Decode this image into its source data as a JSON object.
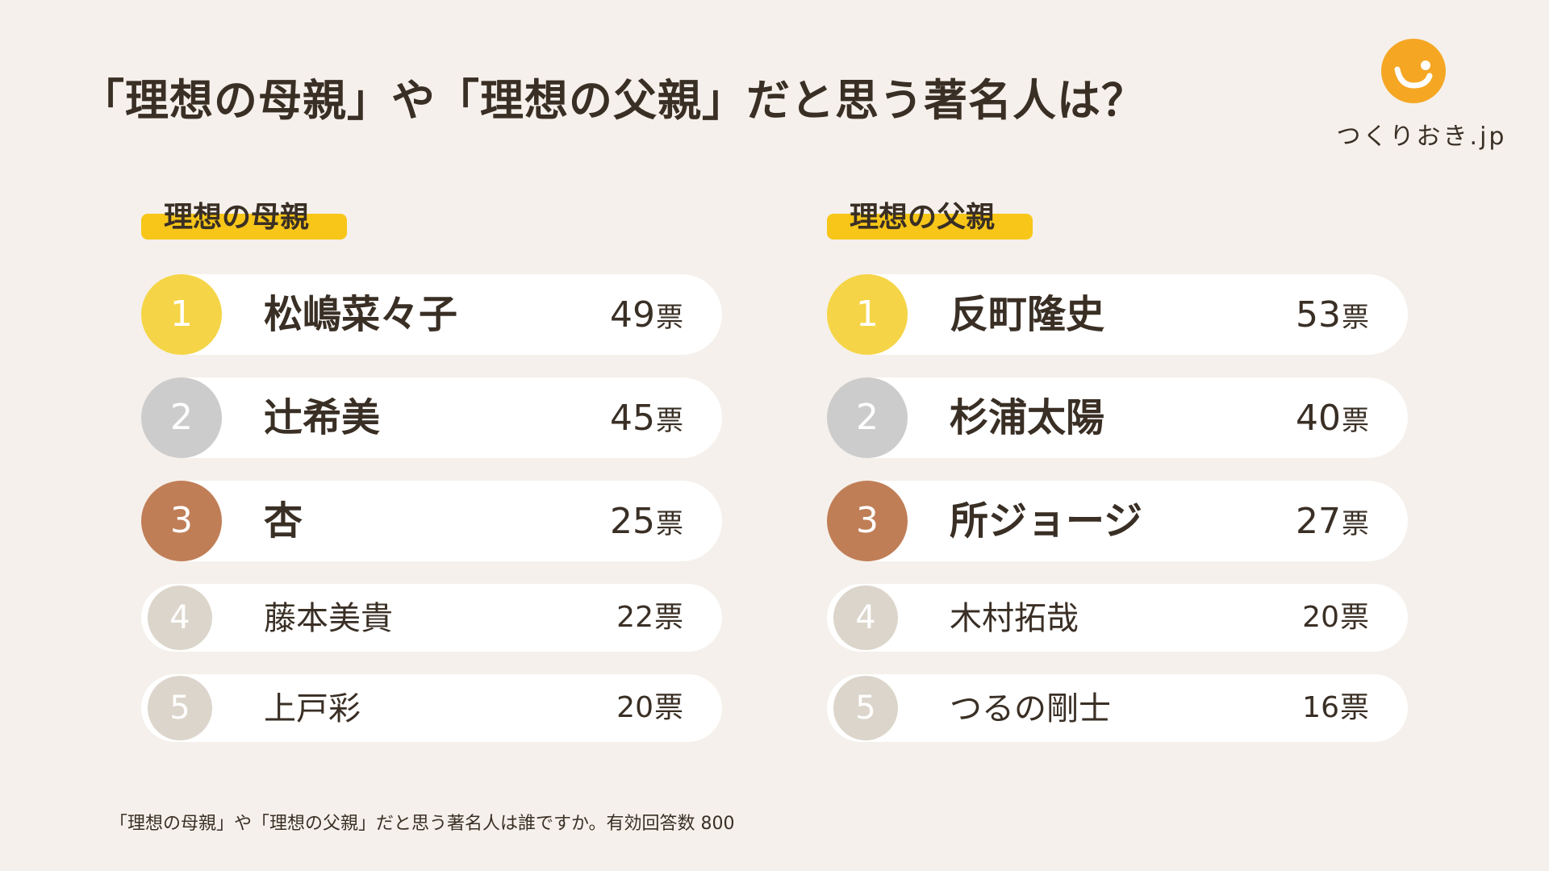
{
  "title": "「理想の母親」や「理想の父親」だと思う著名人は？",
  "logo": {
    "text": "つくりおき.jp",
    "icon": "smile-logo-icon",
    "color": "#f5a623"
  },
  "footer": "「理想の母親」や「理想の父親」だと思う著名人は誰ですか。有効回答数 800",
  "rank_colors": {
    "1": "#f5d547",
    "2": "#cccccc",
    "3": "#c07e57",
    "4": "#dcd5cb",
    "5": "#dcd5cb"
  },
  "highlight_color": "#f7c619",
  "chart_data": [
    {
      "type": "table",
      "title": "理想の母親",
      "unit": "票",
      "ranks": [
        "1",
        "2",
        "3",
        "4",
        "5"
      ],
      "names": [
        "松嶋菜々子",
        "辻希美",
        "杏",
        "藤本美貴",
        "上戸彩"
      ],
      "values": [
        49,
        45,
        25,
        22,
        20
      ]
    },
    {
      "type": "table",
      "title": "理想の父親",
      "unit": "票",
      "ranks": [
        "1",
        "2",
        "3",
        "4",
        "5"
      ],
      "names": [
        "反町隆史",
        "杉浦太陽",
        "所ジョージ",
        "木村拓哉",
        "つるの剛士"
      ],
      "values": [
        53,
        40,
        27,
        20,
        16
      ]
    }
  ]
}
